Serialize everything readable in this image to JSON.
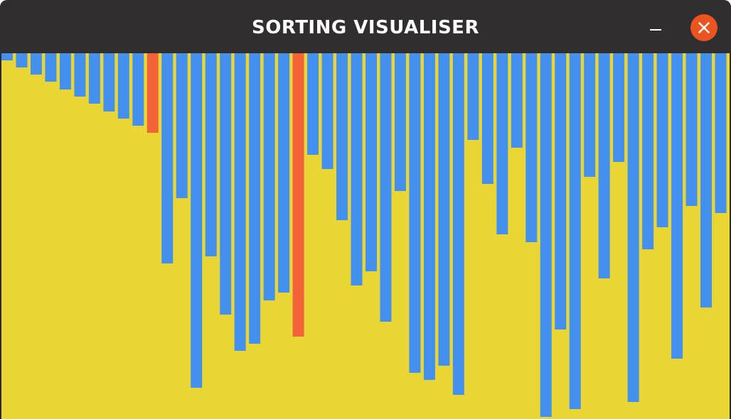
{
  "window": {
    "title": "SORTING VISUALISER"
  },
  "controls": {
    "minimize_icon": "minimize-icon",
    "close_icon": "close-icon"
  },
  "colors": {
    "titlebar": "#302e2f",
    "title_text": "#ffffff",
    "close_button": "#e95420",
    "canvas_background": "#e9d533",
    "bar_default": "#4490ee",
    "bar_highlight": "#f4623a"
  },
  "visualiser": {
    "max_value": 515,
    "highlighted_indices": [
      10,
      20
    ],
    "values": [
      10,
      20,
      30,
      40,
      51,
      61,
      71,
      82,
      92,
      102,
      112,
      296,
      204,
      471,
      286,
      368,
      419,
      409,
      348,
      337,
      399,
      143,
      163,
      235,
      327,
      307,
      378,
      194,
      450,
      460,
      440,
      481,
      122,
      184,
      255,
      133,
      266,
      512,
      389,
      501,
      174,
      317,
      153,
      491,
      276,
      245,
      430,
      215,
      358,
      225
    ]
  }
}
